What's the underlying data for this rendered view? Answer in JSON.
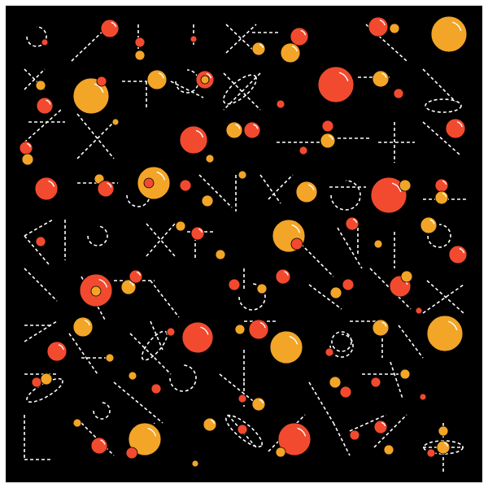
{
  "artwork": {
    "background_color": "#000000",
    "frame_color": "#ffffff",
    "palette": {
      "red": "#f24a2e",
      "yellow": "#f2a527",
      "highlight": "#ffffff",
      "line": "#ffffff"
    },
    "line_style": "dashed"
  }
}
